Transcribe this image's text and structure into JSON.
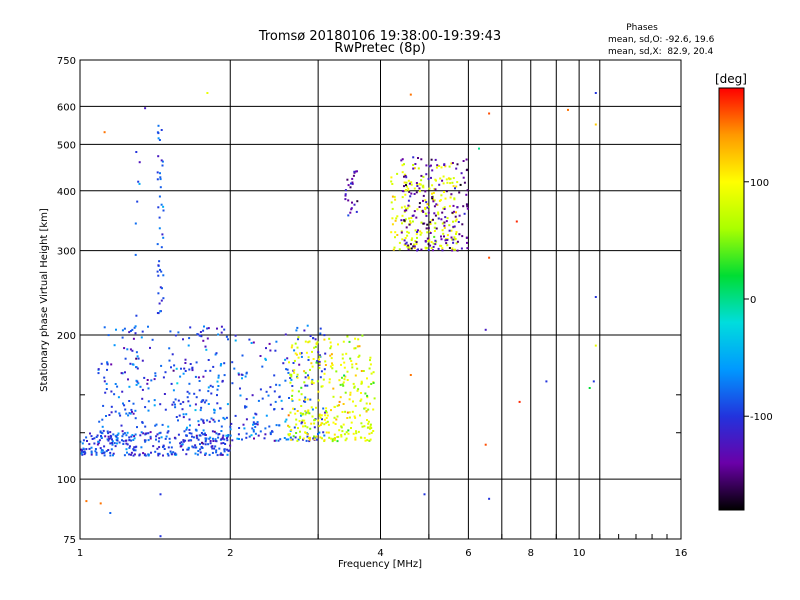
{
  "chart_data": {
    "type": "scatter",
    "title": "Tromsø 20180106 19:38:00-19:39:43",
    "subtitle": "RwPretec (8p)",
    "xlabel": "Frequency [MHz]",
    "ylabel": "Stationary phase Virtual Height [km]",
    "x_scale": "log",
    "y_scale": "log",
    "xlim": [
      1,
      16
    ],
    "ylim": [
      75,
      750
    ],
    "x_ticks": [
      1,
      2,
      4,
      6,
      8,
      10,
      16
    ],
    "x_tick_labels": [
      "1",
      "2",
      "4",
      "6",
      "8",
      "10",
      "16"
    ],
    "x_minor_ticks": [
      3,
      5,
      7,
      9,
      11,
      12,
      13,
      14,
      15
    ],
    "y_ticks": [
      75,
      100,
      200,
      300,
      400,
      500,
      600,
      750
    ],
    "y_tick_labels": [
      "75",
      "100",
      "200",
      "300",
      "400",
      "500",
      "600",
      "750"
    ],
    "y_minor_ticks": [
      125,
      150
    ],
    "grid": true,
    "colorbar": {
      "label": "[deg]",
      "range": [
        -180,
        180
      ],
      "ticks": [
        100,
        0,
        -100
      ],
      "tick_labels": [
        "100",
        "0",
        "-100"
      ],
      "colors": [
        "#000000",
        "#6a00a8",
        "#2233dd",
        "#0099ff",
        "#00dddd",
        "#00dd33",
        "#aaff00",
        "#ffff00",
        "#ff9900",
        "#ff0000"
      ]
    },
    "stats": {
      "title": "Phases",
      "line1": "mean, sd,O: -92.6, 19.6",
      "line2": "mean, sd,X:  82.9, 20.4"
    },
    "clusters": [
      {
        "name": "F-region O low",
        "x": [
          1.0,
          2.0
        ],
        "y": [
          112,
          125
        ],
        "phase_mean": -95,
        "phase_sd": 20,
        "count": 260
      },
      {
        "name": "F-region O spread",
        "x": [
          1.08,
          3.1
        ],
        "y": [
          120,
          210
        ],
        "phase_mean": -90,
        "phase_sd": 22,
        "count": 500
      },
      {
        "name": "F-region X",
        "x": [
          2.6,
          3.9
        ],
        "y": [
          120,
          200
        ],
        "phase_mean": 85,
        "phase_sd": 22,
        "count": 320
      },
      {
        "name": "Upper X",
        "x": [
          4.2,
          5.7
        ],
        "y": [
          300,
          460
        ],
        "phase_mean": 90,
        "phase_sd": 15,
        "count": 200
      },
      {
        "name": "Upper O",
        "x": [
          4.4,
          6.0
        ],
        "y": [
          300,
          470
        ],
        "phase_mean": -140,
        "phase_sd": 15,
        "count": 170
      },
      {
        "name": "Vertical column 1.45 MHz",
        "x": [
          1.43,
          1.47
        ],
        "y": [
          220,
          600
        ],
        "phase_mean": -90,
        "phase_sd": 15,
        "count": 45
      },
      {
        "name": "Vertical column 1.3 MHz",
        "x": [
          1.28,
          1.32
        ],
        "y": [
          150,
          500
        ],
        "phase_mean": -85,
        "phase_sd": 20,
        "count": 18
      },
      {
        "name": "Column 3.5 MHz",
        "x": [
          3.4,
          3.6
        ],
        "y": [
          350,
          440
        ],
        "phase_mean": -140,
        "phase_sd": 15,
        "count": 25
      }
    ],
    "sparse_points": [
      {
        "x": 1.03,
        "y": 90,
        "phase": 150
      },
      {
        "x": 1.1,
        "y": 89,
        "phase": 150
      },
      {
        "x": 1.15,
        "y": 85,
        "phase": -80
      },
      {
        "x": 1.12,
        "y": 530,
        "phase": 150
      },
      {
        "x": 1.45,
        "y": 76,
        "phase": -100
      },
      {
        "x": 1.45,
        "y": 93,
        "phase": -100
      },
      {
        "x": 1.8,
        "y": 640,
        "phase": 90
      },
      {
        "x": 1.35,
        "y": 595,
        "phase": -120
      },
      {
        "x": 4.6,
        "y": 635,
        "phase": 150
      },
      {
        "x": 4.6,
        "y": 165,
        "phase": 150
      },
      {
        "x": 4.9,
        "y": 93,
        "phase": -100
      },
      {
        "x": 6.3,
        "y": 490,
        "phase": 0
      },
      {
        "x": 6.6,
        "y": 580,
        "phase": 160
      },
      {
        "x": 6.5,
        "y": 118,
        "phase": 160
      },
      {
        "x": 6.6,
        "y": 91,
        "phase": -100
      },
      {
        "x": 6.6,
        "y": 290,
        "phase": 160
      },
      {
        "x": 6.5,
        "y": 205,
        "phase": -120
      },
      {
        "x": 7.5,
        "y": 345,
        "phase": 170
      },
      {
        "x": 7.6,
        "y": 145,
        "phase": 170
      },
      {
        "x": 8.6,
        "y": 160,
        "phase": -100
      },
      {
        "x": 9.5,
        "y": 590,
        "phase": 150
      },
      {
        "x": 10.8,
        "y": 640,
        "phase": -100
      },
      {
        "x": 10.8,
        "y": 550,
        "phase": 120
      },
      {
        "x": 10.8,
        "y": 240,
        "phase": -100
      },
      {
        "x": 10.8,
        "y": 190,
        "phase": 90
      },
      {
        "x": 10.7,
        "y": 160,
        "phase": -100
      },
      {
        "x": 10.5,
        "y": 155,
        "phase": 20
      }
    ]
  }
}
